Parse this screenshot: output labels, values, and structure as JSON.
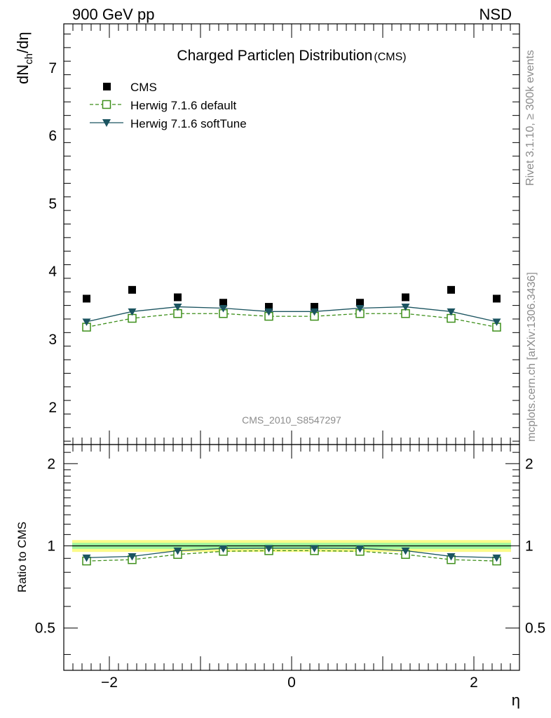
{
  "header": {
    "left": "900 GeV pp",
    "right": "NSD"
  },
  "side_labels": {
    "rivet": "Rivet 3.1.10, ≥ 300k events",
    "mcplots": "mcplots.cern.ch [arXiv:1306.3436]"
  },
  "chart_data": [
    {
      "type": "scatter",
      "title": "Charged Particleη Distribution",
      "title_suffix": "(CMS)",
      "ylabel": "dN_ch/dη",
      "ylabel_main": "dN",
      "ylabel_sub": "ch",
      "ylabel_tail": "/dη",
      "xlim": [
        -2.5,
        2.5
      ],
      "ylim": [
        1.45,
        7.65
      ],
      "yticks": [
        2,
        3,
        4,
        5,
        6,
        7
      ],
      "ytick_labels": [
        "2",
        "3",
        "4",
        "5",
        "6",
        "7"
      ],
      "watermark": "CMS_2010_S8547297",
      "legend_position": "top-left",
      "x": [
        -2.25,
        -1.75,
        -1.25,
        -0.75,
        -0.25,
        0.25,
        0.75,
        1.25,
        1.75,
        2.25
      ],
      "series": [
        {
          "name": "CMS",
          "marker": "filled-square",
          "color": "#000000",
          "line": "none",
          "values": [
            3.6,
            3.73,
            3.62,
            3.54,
            3.48,
            3.48,
            3.54,
            3.62,
            3.73,
            3.6
          ]
        },
        {
          "name": "Herwig 7.1.6 default",
          "marker": "open-square",
          "color": "#3d8f1a",
          "line": "dashed",
          "values": [
            3.18,
            3.31,
            3.38,
            3.38,
            3.34,
            3.34,
            3.38,
            3.38,
            3.31,
            3.18
          ]
        },
        {
          "name": "Herwig 7.1.6 softTune",
          "marker": "filled-triangle-down",
          "color": "#1b5460",
          "line": "solid",
          "values": [
            3.26,
            3.41,
            3.48,
            3.46,
            3.41,
            3.41,
            3.46,
            3.48,
            3.41,
            3.26
          ]
        }
      ]
    },
    {
      "type": "line",
      "ylabel": "Ratio to CMS",
      "xlabel": "η",
      "xlim": [
        -2.5,
        2.5
      ],
      "ylim": [
        0.35,
        2.35
      ],
      "yscale": "log",
      "xticks": [
        -2,
        0,
        2
      ],
      "xtick_labels": [
        "−2",
        "0",
        "2"
      ],
      "yticks": [
        0.5,
        1,
        2
      ],
      "ytick_labels": [
        "0.5",
        "1",
        "2"
      ],
      "reference_line": 1,
      "bands": {
        "inner_color": "#9df59d",
        "outer_color": "#fbfb8a",
        "inner_halfwidth": 0.025,
        "outer_halfwidth": 0.05
      },
      "x": [
        -2.25,
        -1.75,
        -1.25,
        -0.75,
        -0.25,
        0.25,
        0.75,
        1.25,
        1.75,
        2.25
      ],
      "series": [
        {
          "name": "Herwig 7.1.6 default",
          "marker": "open-square",
          "color": "#3d8f1a",
          "line": "dashed",
          "values": [
            0.88,
            0.89,
            0.93,
            0.955,
            0.96,
            0.96,
            0.955,
            0.93,
            0.89,
            0.88
          ]
        },
        {
          "name": "Herwig 7.1.6 softTune",
          "marker": "filled-triangle-down",
          "color": "#1b5460",
          "line": "solid",
          "values": [
            0.905,
            0.915,
            0.96,
            0.978,
            0.98,
            0.98,
            0.978,
            0.96,
            0.915,
            0.905
          ]
        }
      ]
    }
  ]
}
